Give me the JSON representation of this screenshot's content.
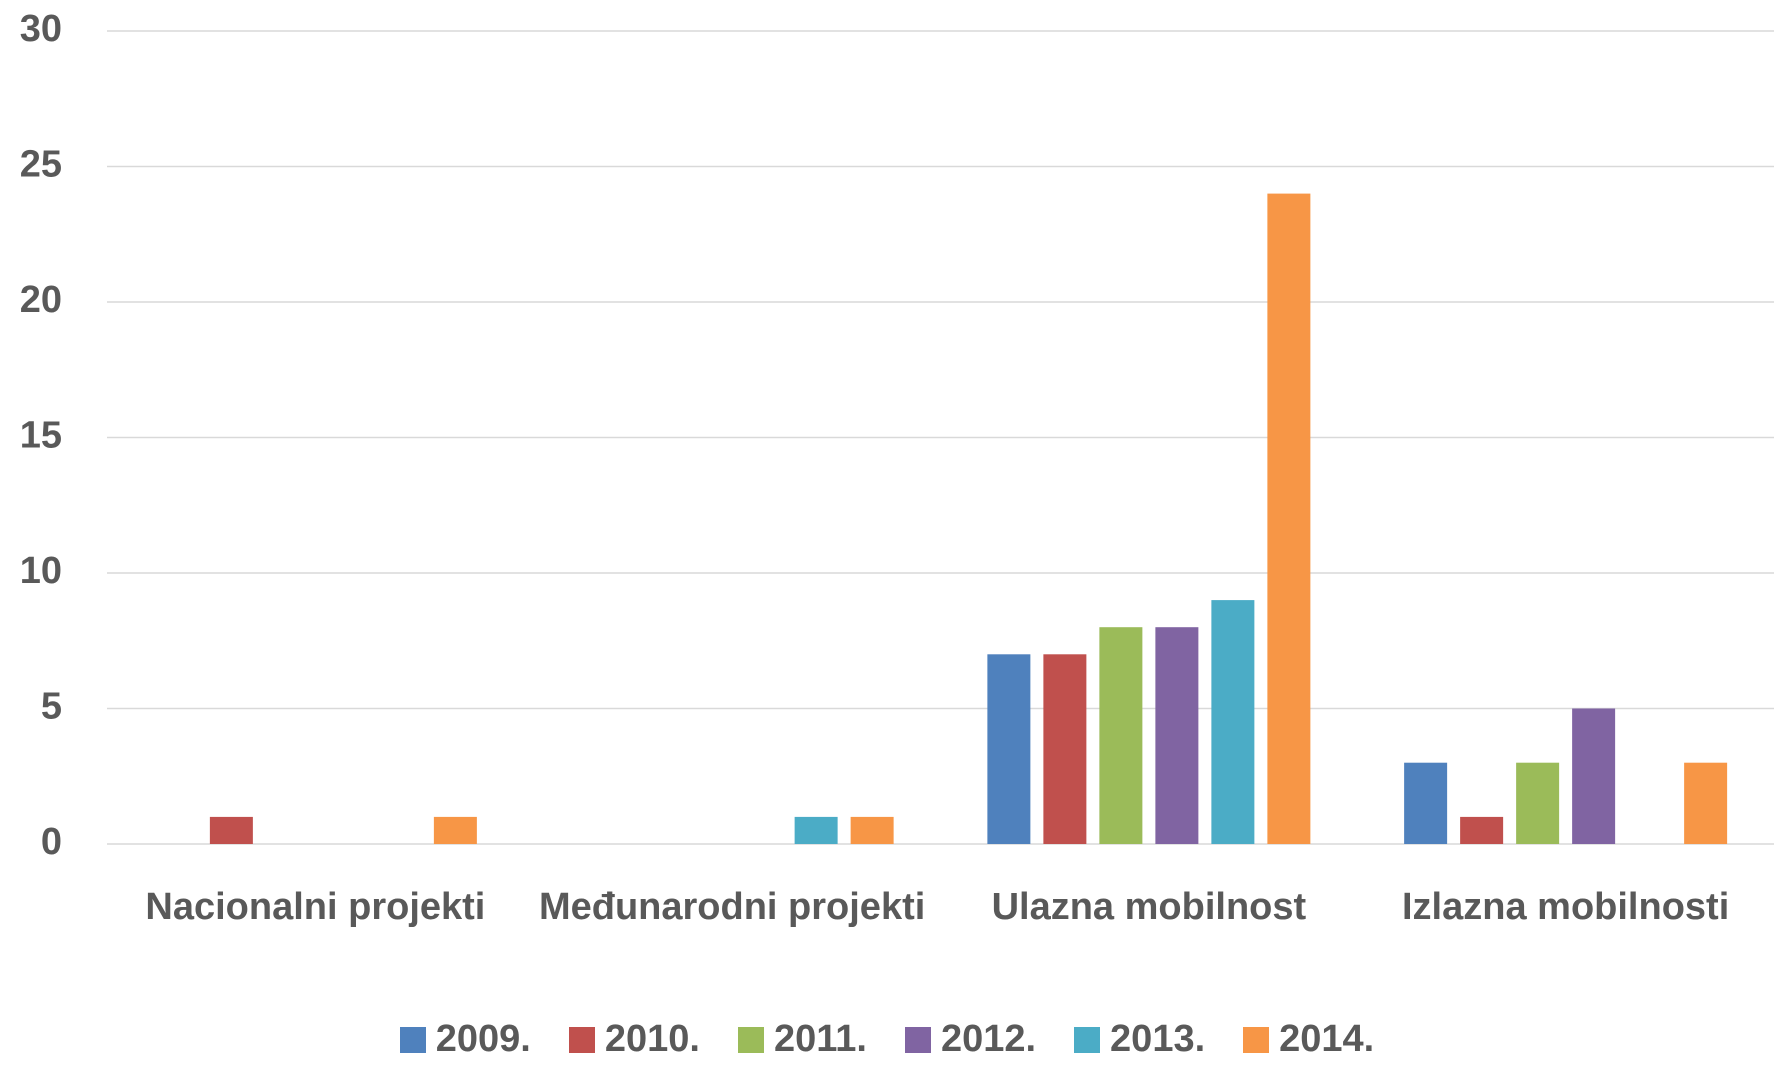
{
  "chart_data": {
    "type": "bar",
    "categories": [
      "Nacionalni projekti",
      "Međunarodni projekti",
      "Ulazna mobilnost",
      "Izlazna mobilnosti"
    ],
    "series": [
      {
        "name": "2009.",
        "color": "#4f81bd",
        "values": [
          0,
          0,
          7,
          3
        ]
      },
      {
        "name": "2010.",
        "color": "#c0504d",
        "values": [
          1,
          0,
          7,
          1
        ]
      },
      {
        "name": "2011.",
        "color": "#9bbb59",
        "values": [
          0,
          0,
          8,
          3
        ]
      },
      {
        "name": "2012.",
        "color": "#8064a2",
        "values": [
          0,
          0,
          8,
          5
        ]
      },
      {
        "name": "2013.",
        "color": "#4bacc6",
        "values": [
          0,
          1,
          9,
          0
        ]
      },
      {
        "name": "2014.",
        "color": "#f79646",
        "values": [
          1,
          1,
          24,
          3
        ]
      }
    ],
    "ylim": [
      0,
      30
    ],
    "yticks": [
      0,
      5,
      10,
      15,
      20,
      25,
      30
    ],
    "grid": true,
    "legend": "bottom"
  }
}
